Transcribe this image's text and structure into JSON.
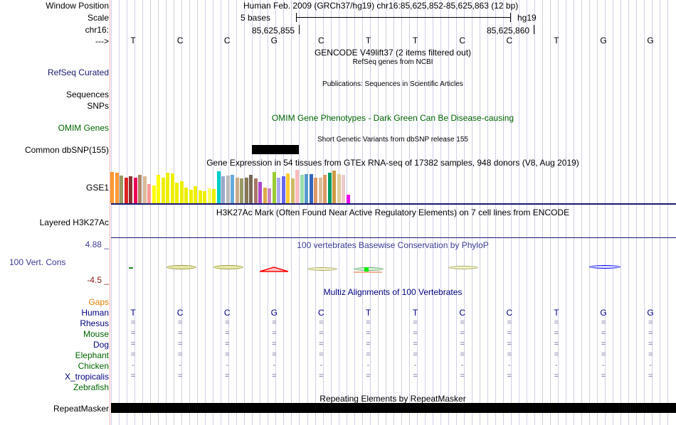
{
  "header": {
    "window_position_label": "Window Position",
    "window_position_value": "Human Feb. 2009 (GRCh37/hg19)   chr16:85,625,852-85,625,863 (12 bp)",
    "scale_label": "Scale",
    "scale_text": "5 bases",
    "scale_assembly": "hg19",
    "chrom_label": "chr16:",
    "pos1": "85,625,855",
    "pos2": "85,625,860",
    "strand_label": "--->"
  },
  "bases": [
    "T",
    "C",
    "C",
    "G",
    "C",
    "T",
    "T",
    "C",
    "C",
    "T",
    "G",
    "G"
  ],
  "tracks": {
    "gencode_title": "GENCODE V49lift37 (2 items filtered out)",
    "refseq_title": "RefSeq genes from NCBI",
    "refseq_label": "RefSeq Curated",
    "publications_title": "Publications: Sequences in Scientific Articles",
    "sequences_label": "Sequences",
    "snps_label": "SNPs",
    "omim_title": "OMIM Gene Phenotypes - Dark Green Can Be Disease-causing",
    "omim_label": "OMIM Genes",
    "dbsnp_title": "Short Genetic Variants from dbSNP release 155",
    "dbsnp_label": "Common dbSNP(155)",
    "gtex_title": "Gene Expression in 54 tissues from GTEx RNA-seq of 17382 samples, 948 donors (V8, Aug 2019)",
    "gtex_label": "GSE1",
    "h3k27ac_title": "H3K27Ac Mark (Often Found Near Active Regulatory Elements) on 7 cell lines from ENCODE",
    "h3k27ac_label": "Layered H3K27Ac",
    "cons_max": "4.88 _",
    "cons_title": "100 vertebrates Basewise Conservation by PhyloP",
    "cons_label": "100 Vert. Cons",
    "cons_min": "-4.5 _",
    "multiz_title": "Multiz Alignments of 100 Vertebrates",
    "gaps_label": "Gaps",
    "repeat_title": "Repeating Elements by RepeatMasker",
    "repeat_label": "RepeatMasker"
  },
  "species": [
    {
      "name": "Human",
      "row": [
        "T",
        "C",
        "C",
        "G",
        "C",
        "T",
        "T",
        "C",
        "C",
        "T",
        "G",
        "G"
      ],
      "color": "#000080"
    },
    {
      "name": "Rhesus",
      "row": [
        "=",
        "=",
        "=",
        "=",
        "=",
        "=",
        "=",
        "=",
        "=",
        "=",
        "=",
        "="
      ],
      "color": "#000080"
    },
    {
      "name": "Mouse",
      "row": [
        "=",
        "=",
        "=",
        "=",
        "=",
        "=",
        "=",
        "=",
        "=",
        "=",
        "=",
        "="
      ],
      "color": "#006400"
    },
    {
      "name": "Dog",
      "row": [
        "=",
        "=",
        "=",
        "=",
        "=",
        "=",
        "=",
        "=",
        "=",
        "=",
        "=",
        "="
      ],
      "color": "#000080"
    },
    {
      "name": "Elephant",
      "row": [
        "=",
        "=",
        "=",
        "=",
        "=",
        "=",
        "=",
        "=",
        "=",
        "=",
        "=",
        "="
      ],
      "color": "#006400"
    },
    {
      "name": "Chicken",
      "row": [
        "-",
        "-",
        "-",
        "-",
        "-",
        "-",
        "-",
        "-",
        "-",
        "-",
        "-",
        "-"
      ],
      "color": "#006400"
    },
    {
      "name": "X_tropicalis",
      "row": [
        "=",
        "=",
        "=",
        "=",
        "=",
        "=",
        "=",
        "=",
        "=",
        "=",
        "=",
        "="
      ],
      "color": "#000080"
    },
    {
      "name": "Zebrafish",
      "row": [
        "",
        "",
        "",
        "",
        "",
        "",
        "",
        "",
        "",
        "",
        "",
        ""
      ],
      "color": "#006400"
    }
  ],
  "gtex_values": [
    0.92,
    0.9,
    0.82,
    0.76,
    0.8,
    0.74,
    0.84,
    0.8,
    0.56,
    0.52,
    0.84,
    0.75,
    0.9,
    0.88,
    0.6,
    0.65,
    0.46,
    0.4,
    0.5,
    0.38,
    0.36,
    0.44,
    0.42,
    0.93,
    0.8,
    0.82,
    0.84,
    0.74,
    0.72,
    0.74,
    0.84,
    0.72,
    0.62,
    0.46,
    0.44,
    0.92,
    0.76,
    0.8,
    0.88,
    0.72,
    0.98,
    0.84,
    0.86,
    0.86,
    0.74,
    0.76,
    0.84,
    0.9,
    0.95,
    0.86,
    0.84,
    0.26
  ],
  "gtex_colors": [
    "#ff9933",
    "#ff9933",
    "#999966",
    "#dd2222",
    "#883333",
    "#ee0055",
    "#aa8866",
    "#ddbb99",
    "#ff9999",
    "#ffff00",
    "#ffff00",
    "#eeee00",
    "#eeee00",
    "#eeee00",
    "#eeee00",
    "#eeee00",
    "#eeee00",
    "#eeee00",
    "#eeee00",
    "#eeee00",
    "#eeee00",
    "#ffff66",
    "#eeee00",
    "#00cccc",
    "#99aacc",
    "#bbbbbb",
    "#66aadd",
    "#ccaa88",
    "#999966",
    "#887755",
    "#776655",
    "#aa7766",
    "#aa44cc",
    "#ddaa44",
    "#cc88bb",
    "#99cc33",
    "#aaaaee",
    "#6666ee",
    "#ffcc33",
    "#ccbb66",
    "#ffbbbb",
    "#99ddaa",
    "#5599cc",
    "#3366bb",
    "#dd9966",
    "#ddbb99",
    "#dd9966",
    "#009966",
    "#cc9944",
    "#ddcc99",
    "#eecccc",
    "#ee00ee"
  ]
}
